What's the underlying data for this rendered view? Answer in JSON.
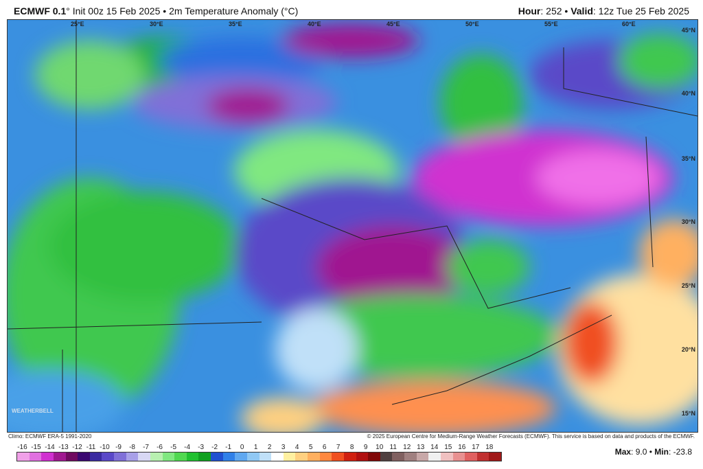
{
  "header": {
    "model": "ECMWF 0.1",
    "model_unit": "°",
    "init": "Init 00z 15 Feb 2025",
    "sep": "•",
    "product": "2m Temperature Anomaly (°C)",
    "hour_label": "Hour",
    "hour": "252",
    "valid_label": "Valid",
    "valid": "12z Tue 25 Feb 2025"
  },
  "map": {
    "lon_labels": [
      "25°E",
      "30°E",
      "35°E",
      "40°E",
      "45°E",
      "50°E",
      "55°E",
      "60°E"
    ],
    "lat_labels": [
      "45°N",
      "40°N",
      "35°N",
      "30°N",
      "25°N",
      "20°N",
      "15°N"
    ],
    "logo": "WEATHERBELL"
  },
  "footer": {
    "climo": "Climo: ECMWF ERA-5 1991-2020",
    "copyright": "© 2025 European Centre for Medium-Range Weather Forecasts (ECMWF). This service is based on data and products of the ECMWF."
  },
  "colorbar": {
    "ticks": [
      "-16",
      "-15",
      "-14",
      "-13",
      "-12",
      "-11",
      "-10",
      "-9",
      "-8",
      "-7",
      "-6",
      "-5",
      "-4",
      "-3",
      "-2",
      "-1",
      "0",
      "1",
      "2",
      "3",
      "4",
      "5",
      "6",
      "7",
      "8",
      "9",
      "10",
      "11",
      "12",
      "13",
      "14",
      "15",
      "16",
      "17",
      "18"
    ],
    "colors": [
      "#f0a0e8",
      "#e070e0",
      "#d030d0",
      "#a01890",
      "#700a60",
      "#3a0870",
      "#3a2aa0",
      "#5a48c8",
      "#8070d8",
      "#a8a0e8",
      "#d8d8f4",
      "#b8f0b0",
      "#80e880",
      "#50d850",
      "#20c030",
      "#10a020",
      "#2050d0",
      "#3080e8",
      "#60a8f0",
      "#90c8f4",
      "#c0e0f8",
      "#ffffff",
      "#fff0a0",
      "#ffd080",
      "#ffb060",
      "#ff8840",
      "#f05020",
      "#d02010",
      "#b01010",
      "#800808",
      "#504040",
      "#806060",
      "#a08080",
      "#c8a8a8",
      "#f0f0f0",
      "#f0c0c0",
      "#e89090",
      "#e06060",
      "#c03030",
      "#a01818"
    ]
  },
  "stats": {
    "max_label": "Max",
    "max": "9.0",
    "min_label": "Min",
    "min": "-23.8"
  }
}
